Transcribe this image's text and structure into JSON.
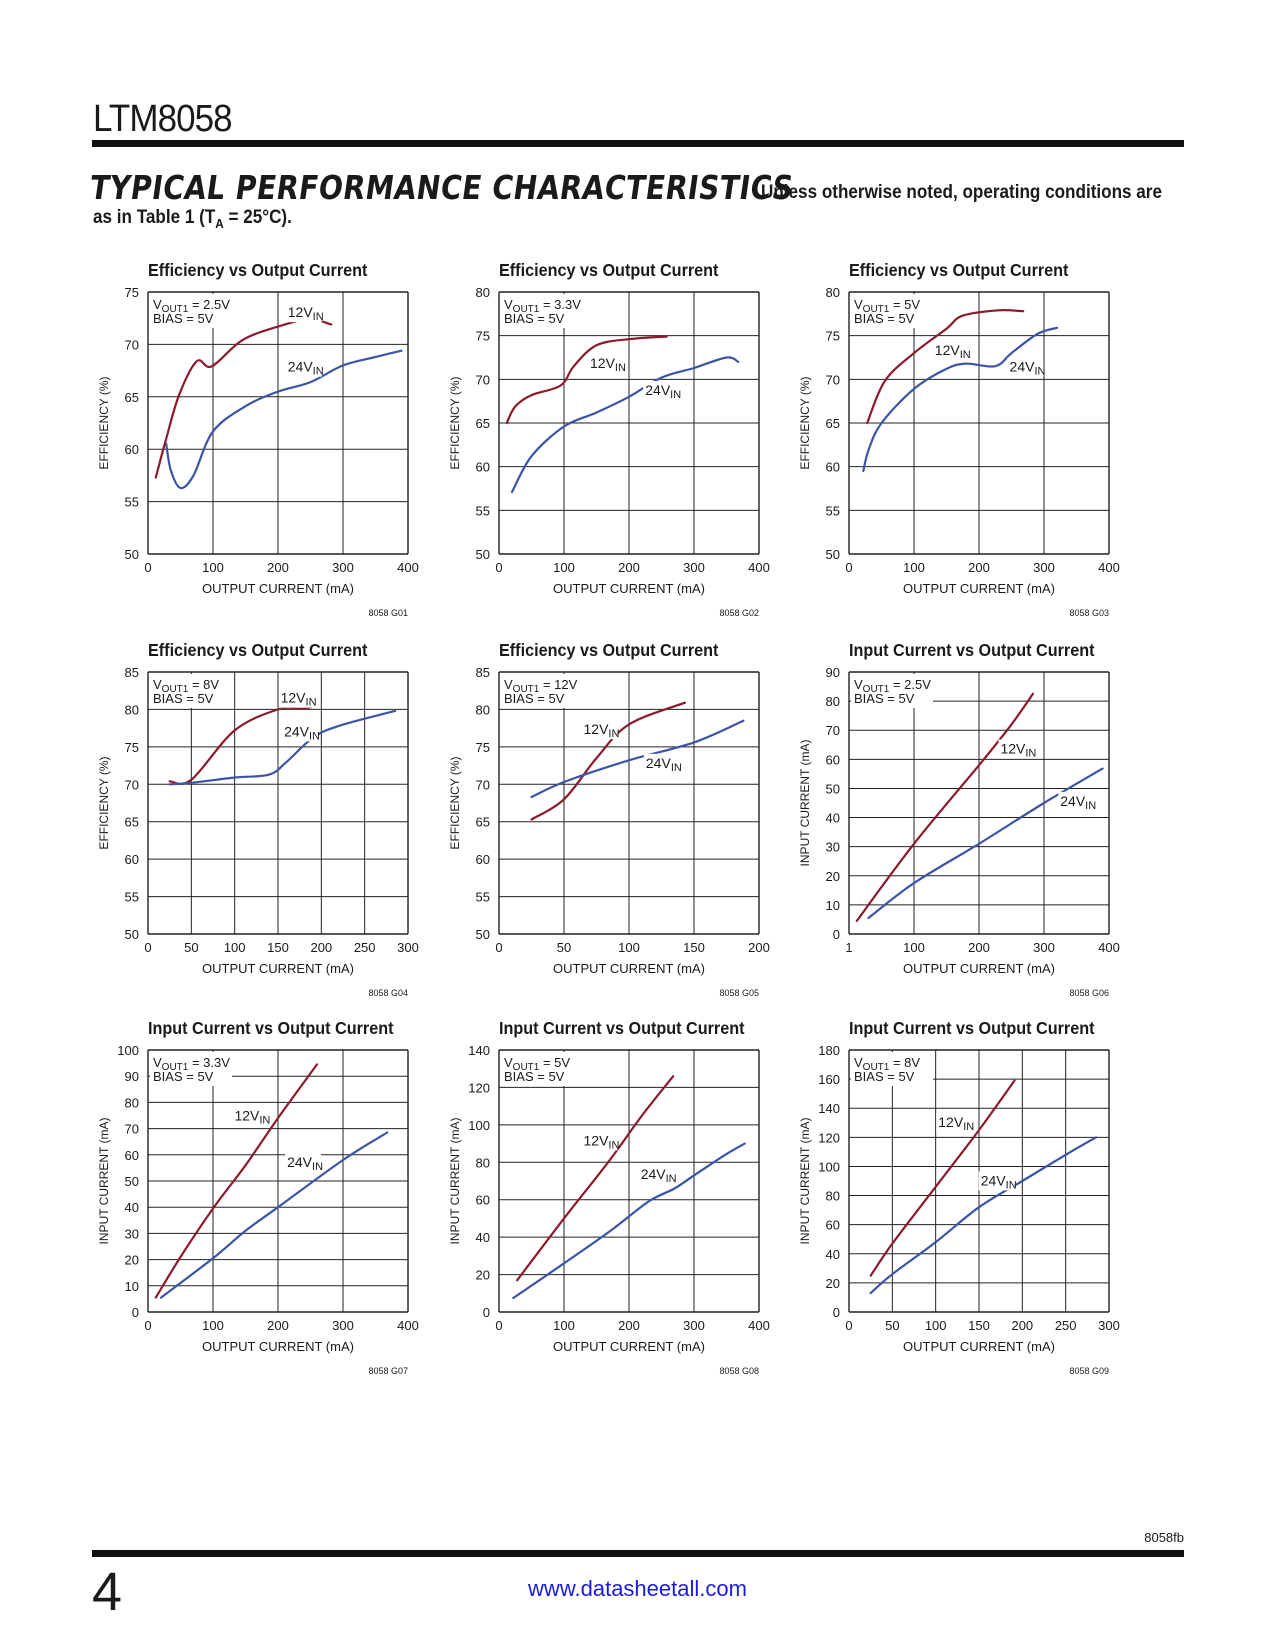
{
  "header": {
    "part_number": "LTM8058",
    "section_title": "TYPICAL PERFORMANCE CHARACTERISTICS",
    "note_line1": "Unless otherwise noted, operating conditions are",
    "note_line2_pre": "as in Table 1 (T",
    "note_line2_sub": "A",
    "note_line2_post": " = 25°C)."
  },
  "footer": {
    "doc_code": "8058fb",
    "page_number": "4",
    "url": "www.datasheetall.com"
  },
  "colors": {
    "red": "#8b1a2b",
    "blue": "#3a55a4",
    "grid": "#222222"
  },
  "chart_data": [
    {
      "id": "G01",
      "type": "line",
      "title": "Efficiency vs Output Current",
      "xlabel": "OUTPUT CURRENT (mA)",
      "ylabel": "EFFICIENCY (%)",
      "xlim": [
        0,
        400
      ],
      "ylim": [
        50,
        75
      ],
      "xticks": [
        "0",
        "100",
        "200",
        "300",
        "400"
      ],
      "yticks": [
        "50",
        "55",
        "60",
        "65",
        "70",
        "75"
      ],
      "grid": true,
      "conditions": [
        {
          "main": "V",
          "sub": "OUT1",
          "rest": " = 2.5V"
        },
        {
          "main": "BIAS = 5V",
          "sub": "",
          "rest": ""
        }
      ],
      "figure_code": "8058 G01",
      "series": [
        {
          "name": "12V",
          "name_sub": "IN",
          "color": "red",
          "x": [
            12,
            28,
            48,
            75,
            98,
            145,
            200,
            248,
            282
          ],
          "y": [
            57.3,
            61,
            65.2,
            68.4,
            67.9,
            70.4,
            71.7,
            72.4,
            71.9
          ],
          "label_at": [
            215,
            72.6
          ]
        },
        {
          "name": "24V",
          "name_sub": "IN",
          "color": "blue",
          "x": [
            28,
            35,
            50,
            70,
            100,
            150,
            200,
            250,
            300,
            350,
            390
          ],
          "y": [
            60.5,
            58,
            56.3,
            57.5,
            61.7,
            64.1,
            65.5,
            66.4,
            68,
            68.8,
            69.4
          ],
          "label_at": [
            215,
            67.4
          ]
        }
      ]
    },
    {
      "id": "G02",
      "type": "line",
      "title": "Efficiency vs Output Current",
      "xlabel": "OUTPUT CURRENT (mA)",
      "ylabel": "EFFICIENCY (%)",
      "xlim": [
        0,
        400
      ],
      "ylim": [
        50,
        80
      ],
      "xticks": [
        "0",
        "100",
        "200",
        "300",
        "400"
      ],
      "yticks": [
        "50",
        "55",
        "60",
        "65",
        "70",
        "75",
        "80"
      ],
      "grid": true,
      "conditions": [
        {
          "main": "V",
          "sub": "OUT1",
          "rest": " = 3.3V"
        },
        {
          "main": "BIAS = 5V",
          "sub": "",
          "rest": ""
        }
      ],
      "figure_code": "8058 G02",
      "series": [
        {
          "name": "12V",
          "name_sub": "IN",
          "color": "red",
          "x": [
            12,
            25,
            50,
            95,
            115,
            150,
            200,
            258
          ],
          "y": [
            65,
            66.9,
            68.2,
            69.3,
            71.5,
            73.9,
            74.6,
            74.9
          ],
          "label_at": [
            140,
            71.3
          ]
        },
        {
          "name": "24V",
          "name_sub": "IN",
          "color": "blue",
          "x": [
            20,
            50,
            100,
            150,
            200,
            250,
            300,
            350,
            368
          ],
          "y": [
            57.1,
            61.2,
            64.6,
            66.2,
            68,
            70.2,
            71.3,
            72.5,
            72
          ],
          "label_at": [
            225,
            68.2
          ]
        }
      ]
    },
    {
      "id": "G03",
      "type": "line",
      "title": "Efficiency vs Output Current",
      "xlabel": "OUTPUT CURRENT (mA)",
      "ylabel": "EFFICIENCY (%)",
      "xlim": [
        0,
        400
      ],
      "ylim": [
        50,
        80
      ],
      "xticks": [
        "0",
        "100",
        "200",
        "300",
        "400"
      ],
      "yticks": [
        "50",
        "55",
        "60",
        "65",
        "70",
        "75",
        "80"
      ],
      "grid": true,
      "conditions": [
        {
          "main": "V",
          "sub": "OUT1",
          "rest": " = 5V"
        },
        {
          "main": "BIAS = 5V",
          "sub": "",
          "rest": ""
        }
      ],
      "figure_code": "8058 G03",
      "series": [
        {
          "name": "12V",
          "name_sub": "IN",
          "color": "red",
          "x": [
            28,
            55,
            100,
            150,
            175,
            230,
            268
          ],
          "y": [
            65,
            69.8,
            73,
            75.8,
            77.3,
            77.9,
            77.8
          ],
          "label_at": [
            132,
            72.8
          ]
        },
        {
          "name": "24V",
          "name_sub": "IN",
          "color": "blue",
          "x": [
            22,
            30,
            50,
            100,
            150,
            180,
            225,
            250,
            290,
            320
          ],
          "y": [
            59.5,
            61.9,
            65,
            68.9,
            71.2,
            71.8,
            71.5,
            73,
            75.2,
            75.9
          ],
          "label_at": [
            247,
            70.9
          ]
        }
      ]
    },
    {
      "id": "G04",
      "type": "line",
      "title": "Efficiency vs Output Current",
      "xlabel": "OUTPUT CURRENT (mA)",
      "ylabel": "EFFICIENCY (%)",
      "xlim": [
        0,
        300
      ],
      "ylim": [
        50,
        85
      ],
      "xticks": [
        "0",
        "50",
        "100",
        "150",
        "200",
        "250",
        "300"
      ],
      "yticks": [
        "50",
        "55",
        "60",
        "65",
        "70",
        "75",
        "80",
        "85"
      ],
      "grid": true,
      "conditions": [
        {
          "main": "V",
          "sub": "OUT1",
          "rest": " = 8V"
        },
        {
          "main": "BIAS = 5V",
          "sub": "",
          "rest": ""
        }
      ],
      "figure_code": "8058 G04",
      "series": [
        {
          "name": "12V",
          "name_sub": "IN",
          "color": "red",
          "x": [
            25,
            50,
            100,
            150,
            175,
            188
          ],
          "y": [
            70.4,
            70.6,
            77.2,
            80,
            80.1,
            80.3
          ],
          "label_at": [
            153,
            80.9
          ]
        },
        {
          "name": "24V",
          "name_sub": "IN",
          "color": "blue",
          "x": [
            25,
            50,
            100,
            140,
            160,
            190,
            220,
            285
          ],
          "y": [
            70,
            70.2,
            70.9,
            71.3,
            73,
            76.2,
            77.8,
            79.8
          ],
          "label_at": [
            157,
            76.4
          ]
        }
      ]
    },
    {
      "id": "G05",
      "type": "line",
      "title": "Efficiency vs Output Current",
      "xlabel": "OUTPUT CURRENT (mA)",
      "ylabel": "EFFICIENCY (%)",
      "xlim": [
        0,
        200
      ],
      "ylim": [
        50,
        85
      ],
      "xticks": [
        "0",
        "50",
        "100",
        "150",
        "200"
      ],
      "yticks": [
        "50",
        "55",
        "60",
        "65",
        "70",
        "75",
        "80",
        "85"
      ],
      "grid": true,
      "conditions": [
        {
          "main": "V",
          "sub": "OUT1",
          "rest": " = 12V"
        },
        {
          "main": "BIAS = 5V",
          "sub": "",
          "rest": ""
        }
      ],
      "figure_code": "8058 G05",
      "series": [
        {
          "name": "12V",
          "name_sub": "IN",
          "color": "red",
          "x": [
            25,
            50,
            75,
            100,
            143
          ],
          "y": [
            65.3,
            68,
            73.5,
            78,
            80.9
          ],
          "label_at": [
            65,
            76.7
          ]
        },
        {
          "name": "24V",
          "name_sub": "IN",
          "color": "blue",
          "x": [
            25,
            50,
            100,
            150,
            188
          ],
          "y": [
            68.3,
            70.3,
            73.2,
            75.6,
            78.5
          ],
          "label_at": [
            113,
            72.2
          ]
        }
      ]
    },
    {
      "id": "G06",
      "type": "line",
      "title": "Input Current vs Output Current",
      "xlabel": "OUTPUT CURRENT (mA)",
      "ylabel": "INPUT CURRENT (mA)",
      "xlim": [
        0,
        400
      ],
      "ylim": [
        0,
        90
      ],
      "xticks": [
        "1",
        "100",
        "200",
        "300",
        "400"
      ],
      "yticks": [
        "0",
        "10",
        "20",
        "30",
        "40",
        "50",
        "60",
        "70",
        "80",
        "90"
      ],
      "grid": true,
      "conditions": [
        {
          "main": "V",
          "sub": "OUT1",
          "rest": " = 2.5V"
        },
        {
          "main": "BIAS = 5V",
          "sub": "",
          "rest": ""
        }
      ],
      "figure_code": "8058 G06",
      "series": [
        {
          "name": "12V",
          "name_sub": "IN",
          "color": "red",
          "x": [
            12,
            100,
            200,
            250,
            283
          ],
          "y": [
            4.5,
            31,
            58,
            72,
            82.5
          ],
          "label_at": [
            233,
            62
          ]
        },
        {
          "name": "24V",
          "name_sub": "IN",
          "color": "blue",
          "x": [
            30,
            100,
            200,
            300,
            390
          ],
          "y": [
            5.5,
            17.5,
            31,
            45,
            56.8
          ],
          "label_at": [
            325,
            44
          ]
        }
      ]
    },
    {
      "id": "G07",
      "type": "line",
      "title": "Input Current vs Output Current",
      "xlabel": "OUTPUT CURRENT (mA)",
      "ylabel": "INPUT CURRENT (mA)",
      "xlim": [
        0,
        400
      ],
      "ylim": [
        0,
        100
      ],
      "xticks": [
        "0",
        "100",
        "200",
        "300",
        "400"
      ],
      "yticks": [
        "0",
        "10",
        "20",
        "30",
        "40",
        "50",
        "60",
        "70",
        "80",
        "90",
        "100"
      ],
      "grid": true,
      "conditions": [
        {
          "main": "V",
          "sub": "OUT1",
          "rest": " = 3.3V"
        },
        {
          "main": "BIAS = 5V",
          "sub": "",
          "rest": ""
        }
      ],
      "figure_code": "8058 G07",
      "series": [
        {
          "name": "12V",
          "name_sub": "IN",
          "color": "red",
          "x": [
            12,
            50,
            100,
            150,
            200,
            260
          ],
          "y": [
            5.5,
            21,
            39.5,
            56,
            74,
            94.5
          ],
          "label_at": [
            133,
            73
          ]
        },
        {
          "name": "24V",
          "name_sub": "IN",
          "color": "blue",
          "x": [
            20,
            100,
            150,
            200,
            300,
            368
          ],
          "y": [
            5.5,
            20.5,
            31,
            40,
            58,
            68.5
          ],
          "label_at": [
            214,
            55.3
          ]
        }
      ]
    },
    {
      "id": "G08",
      "type": "line",
      "title": "Input Current vs Output Current",
      "xlabel": "OUTPUT CURRENT (mA)",
      "ylabel": "INPUT CURRENT (mA)",
      "xlim": [
        0,
        400
      ],
      "ylim": [
        0,
        140
      ],
      "xticks": [
        "0",
        "100",
        "200",
        "300",
        "400"
      ],
      "yticks": [
        "0",
        "20",
        "40",
        "60",
        "80",
        "100",
        "120",
        "140"
      ],
      "grid": true,
      "conditions": [
        {
          "main": "V",
          "sub": "OUT1",
          "rest": " = 5V"
        },
        {
          "main": "BIAS = 5V",
          "sub": "",
          "rest": ""
        }
      ],
      "figure_code": "8058 G08",
      "series": [
        {
          "name": "12V",
          "name_sub": "IN",
          "color": "red",
          "x": [
            28,
            100,
            170,
            220,
            268
          ],
          "y": [
            17,
            50,
            81,
            105,
            126
          ],
          "label_at": [
            130,
            89
          ]
        },
        {
          "name": "24V",
          "name_sub": "IN",
          "color": "blue",
          "x": [
            22,
            100,
            170,
            230,
            270,
            300,
            348,
            378
          ],
          "y": [
            7.5,
            26,
            43,
            59,
            66,
            73,
            84,
            90
          ],
          "label_at": [
            218,
            71
          ]
        }
      ]
    },
    {
      "id": "G09",
      "type": "line",
      "title": "Input Current vs Output Current",
      "xlabel": "OUTPUT CURRENT (mA)",
      "ylabel": "INPUT CURRENT (mA)",
      "xlim": [
        0,
        300
      ],
      "ylim": [
        0,
        180
      ],
      "xticks": [
        "0",
        "50",
        "100",
        "150",
        "200",
        "250",
        "300"
      ],
      "yticks": [
        "0",
        "20",
        "40",
        "60",
        "80",
        "100",
        "120",
        "140",
        "160",
        "180"
      ],
      "grid": true,
      "conditions": [
        {
          "main": "V",
          "sub": "OUT1",
          "rest": " = 8V"
        },
        {
          "main": "BIAS = 5V",
          "sub": "",
          "rest": ""
        }
      ],
      "figure_code": "8058 G09",
      "series": [
        {
          "name": "12V",
          "name_sub": "IN",
          "color": "red",
          "x": [
            25,
            50,
            100,
            150,
            191
          ],
          "y": [
            25,
            47,
            86,
            125,
            159
          ],
          "label_at": [
            103,
            127
          ]
        },
        {
          "name": "24V",
          "name_sub": "IN",
          "color": "blue",
          "x": [
            25,
            50,
            100,
            150,
            200,
            250,
            285
          ],
          "y": [
            13,
            26,
            48,
            72,
            90,
            108,
            120
          ],
          "label_at": [
            152,
            87
          ]
        }
      ]
    }
  ]
}
